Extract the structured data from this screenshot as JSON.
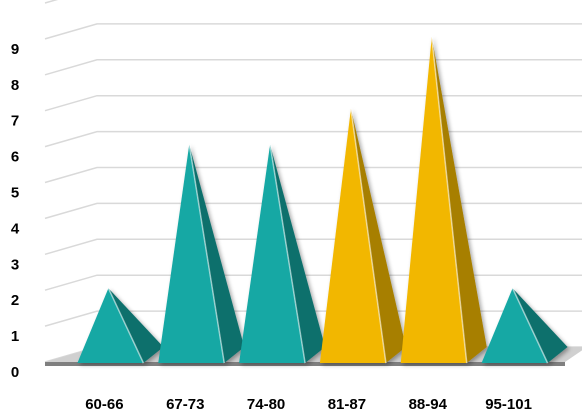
{
  "chart_data": {
    "type": "bar",
    "bar_shape": "pyramid",
    "three_d": true,
    "title": "",
    "xlabel": "",
    "ylabel": "",
    "categories": [
      "60-66",
      "67-73",
      "74-80",
      "81-87",
      "88-94",
      "95-101"
    ],
    "values": [
      2,
      6,
      6,
      7,
      9,
      2
    ],
    "ylim": [
      0,
      9
    ],
    "yticks": [
      0,
      1,
      2,
      3,
      4,
      5,
      6,
      7,
      8,
      9
    ],
    "grid": true,
    "legend": "none",
    "colors": {
      "teal_front": "#13A8A4",
      "teal_side": "#0B6F6C",
      "gold_front": "#F2B705",
      "gold_side": "#A77F05",
      "grid": "#D9D9D9",
      "floor": "#7F7F7F"
    },
    "bar_colors": [
      "teal",
      "teal",
      "teal",
      "gold",
      "gold",
      "teal"
    ]
  }
}
